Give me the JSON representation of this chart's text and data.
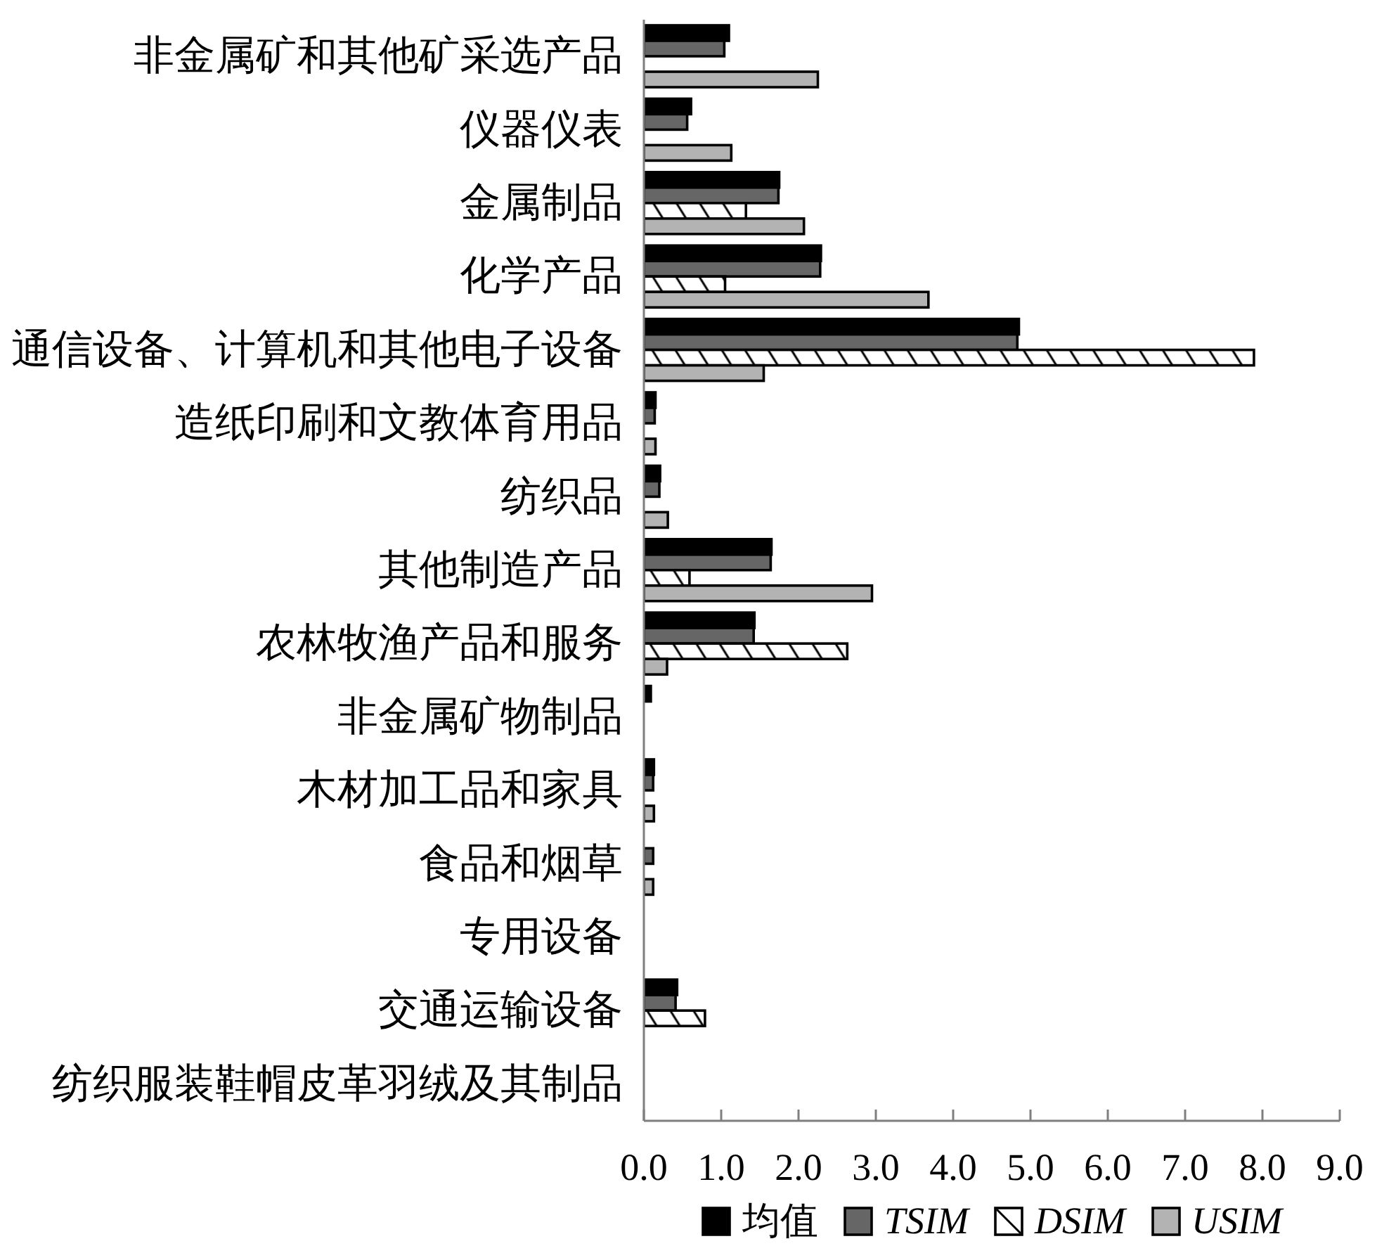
{
  "chart_data": {
    "type": "bar",
    "orientation": "horizontal",
    "categories": [
      "非金属矿和其他矿采选产品",
      "仪器仪表",
      "金属制品",
      "化学产品",
      "通信设备、计算机和其他电子设备",
      "造纸印刷和文教体育用品",
      "纺织品",
      "其他制造产品",
      "农林牧渔产品和服务",
      "非金属矿物制品",
      "木材加工品和家具",
      "食品和烟草",
      "专用设备",
      "交通运输设备",
      "纺织服装鞋帽皮革羽绒及其制品"
    ],
    "series": [
      {
        "name": "均值",
        "color": "#000000",
        "values": [
          1.1,
          0.61,
          1.75,
          2.29,
          4.85,
          0.15,
          0.21,
          1.65,
          1.43,
          0.09,
          0.13,
          0,
          0,
          0.43,
          0
        ]
      },
      {
        "name": "TSIM",
        "color": "#666666",
        "values": [
          1.04,
          0.56,
          1.74,
          2.28,
          4.83,
          0.14,
          0.2,
          1.64,
          1.42,
          0,
          0.12,
          0.12,
          0,
          0.41,
          0
        ]
      },
      {
        "name": "DSIM",
        "color": "#ffffff",
        "values": [
          0,
          0,
          1.32,
          1.05,
          7.89,
          0,
          0,
          0.59,
          2.63,
          0,
          0,
          0,
          0,
          0.79,
          0
        ]
      },
      {
        "name": "USIM",
        "color": "#b3b3b3",
        "values": [
          2.25,
          1.13,
          2.07,
          3.68,
          1.55,
          0.15,
          0.31,
          2.95,
          0.3,
          0,
          0.13,
          0.12,
          0,
          0,
          0
        ]
      }
    ],
    "xlim": [
      0,
      9
    ],
    "xticks": [
      {
        "value": 0,
        "label": "0.0"
      },
      {
        "value": 1,
        "label": "1.0"
      },
      {
        "value": 2,
        "label": "2.0"
      },
      {
        "value": 3,
        "label": "3.0"
      },
      {
        "value": 4,
        "label": "4.0"
      },
      {
        "value": 5,
        "label": "5.0"
      },
      {
        "value": 6,
        "label": "6.0"
      },
      {
        "value": 7,
        "label": "7.0"
      },
      {
        "value": 8,
        "label": "8.0"
      },
      {
        "value": 9,
        "label": "9.0"
      }
    ],
    "legend": "bottom"
  }
}
